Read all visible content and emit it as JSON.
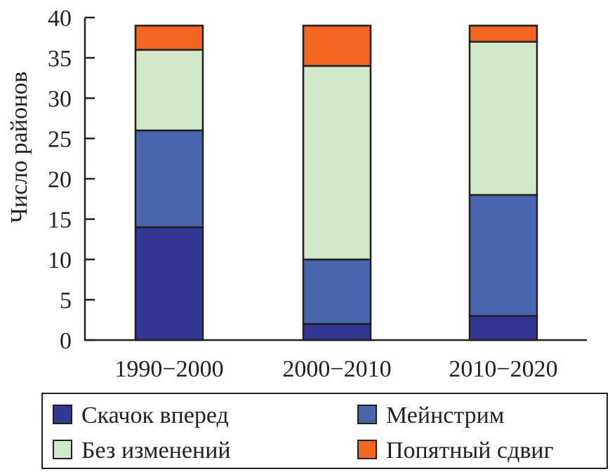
{
  "chart_data": {
    "type": "bar",
    "stacked": true,
    "categories": [
      "1990−2000",
      "2000−2010",
      "2010−2020"
    ],
    "ylabel": "Число районов",
    "xlabel": "",
    "ylim": [
      0,
      40
    ],
    "yticks": [
      0,
      5,
      10,
      15,
      20,
      25,
      30,
      35,
      40
    ],
    "grid": false,
    "legend_position": "bottom",
    "series": [
      {
        "name": "Скачок вперед",
        "values": [
          14,
          2,
          3
        ],
        "color": "#343894"
      },
      {
        "name": "Мейнстрим",
        "values": [
          12,
          8,
          15
        ],
        "color": "#4866ae"
      },
      {
        "name": "Без изменений",
        "values": [
          10,
          24,
          19
        ],
        "color": "#d2e8c8"
      },
      {
        "name": "Попятный сдвиг",
        "values": [
          3,
          5,
          2
        ],
        "color": "#f26622"
      }
    ]
  }
}
